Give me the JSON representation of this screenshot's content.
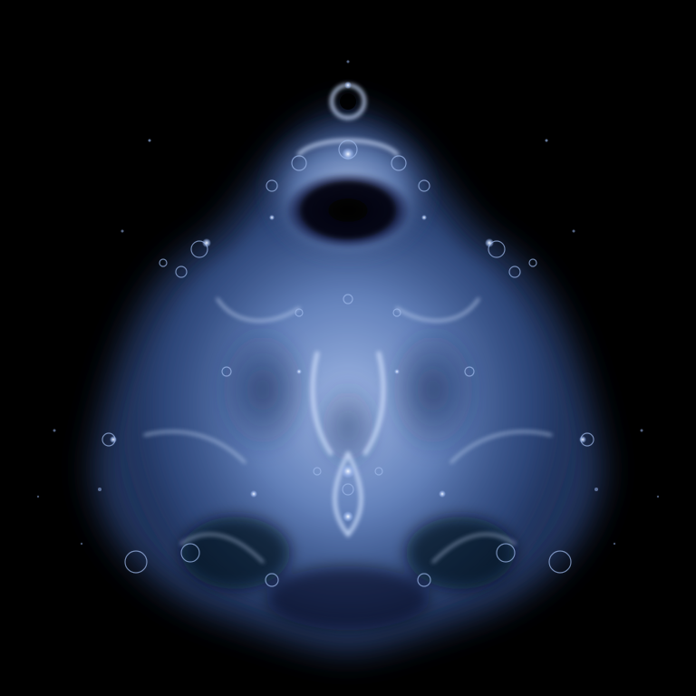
{
  "image": {
    "subject": "buddhabrot-fractal",
    "palette": {
      "background": "#000000",
      "glow_core": "#dbe8ff",
      "glow_mid": "#7e9fd8",
      "glow_deep": "#2f4a80",
      "shadow": "#050a18"
    }
  }
}
